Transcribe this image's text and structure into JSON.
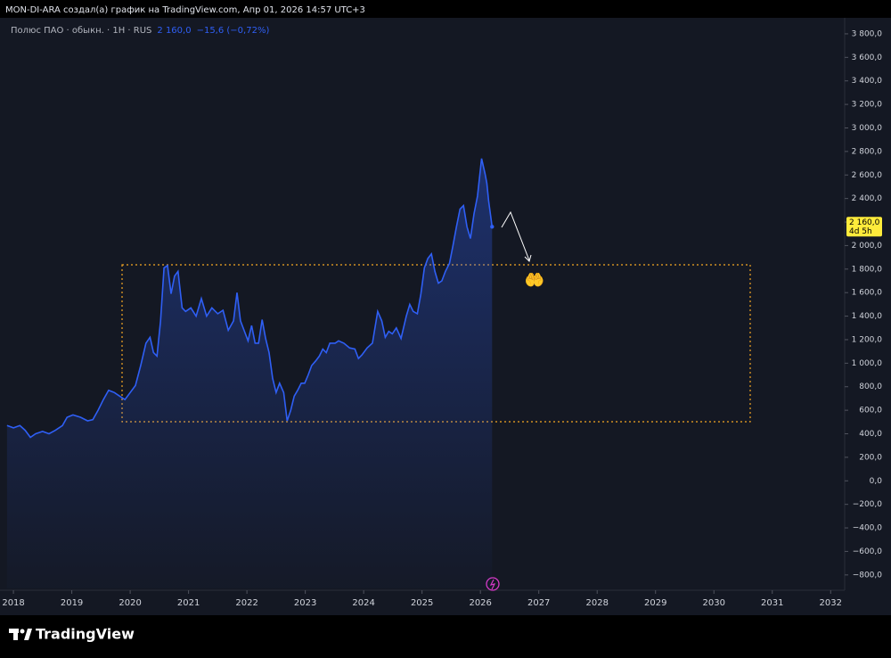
{
  "header": "MON-DI-ARA создал(а) график на TradingView.com, Апр 01, 2026 14:57 UTC+3",
  "footer_logo": "TradingView",
  "chart_data": {
    "type": "line",
    "legend": "top-left",
    "grid": false,
    "last_price_label": "2 160,0",
    "last_change_label": "−15,6 (−0,72%)",
    "countdown": "4d 5h",
    "badge_color": "#ffeb3b",
    "xlim": [
      2017.77,
      2032.24
    ],
    "xticks": [
      2018,
      2019,
      2020,
      2021,
      2022,
      2023,
      2024,
      2025,
      2026,
      2027,
      2028,
      2029,
      2030,
      2031,
      2032
    ],
    "ylim": [
      -915,
      3936
    ],
    "yticks": [
      {
        "value": -800,
        "label": "−800,0"
      },
      {
        "value": -600,
        "label": "−600,0"
      },
      {
        "value": -400,
        "label": "−400,0"
      },
      {
        "value": -200,
        "label": "−200,0"
      },
      {
        "value": 0,
        "label": "0,0"
      },
      {
        "value": 200,
        "label": "200,0"
      },
      {
        "value": 400,
        "label": "400,0"
      },
      {
        "value": 600,
        "label": "600,0"
      },
      {
        "value": 800,
        "label": "800,0"
      },
      {
        "value": 1000,
        "label": "1 000,0"
      },
      {
        "value": 1200,
        "label": "1 200,0"
      },
      {
        "value": 1400,
        "label": "1 400,0"
      },
      {
        "value": 1600,
        "label": "1 600,0"
      },
      {
        "value": 1800,
        "label": "1 800,0"
      },
      {
        "value": 2000,
        "label": "2 000,0"
      },
      {
        "value": 2200,
        "label": "2 200,0"
      },
      {
        "value": 2400,
        "label": "2 400,0"
      },
      {
        "value": 2600,
        "label": "2 600,0"
      },
      {
        "value": 2800,
        "label": "2 800,0"
      },
      {
        "value": 3000,
        "label": "3 000,0"
      },
      {
        "value": 3200,
        "label": "3 200,0"
      },
      {
        "value": 3400,
        "label": "3 400,0"
      },
      {
        "value": 3600,
        "label": "3 600,0"
      },
      {
        "value": 3800,
        "label": "3 800,0"
      }
    ],
    "x": [
      2017.89,
      2018.0,
      2018.11,
      2018.2,
      2018.29,
      2018.38,
      2018.5,
      2018.61,
      2018.72,
      2018.84,
      2018.92,
      2019.02,
      2019.15,
      2019.27,
      2019.36,
      2019.45,
      2019.54,
      2019.63,
      2019.73,
      2019.82,
      2019.91,
      2020.0,
      2020.09,
      2020.18,
      2020.27,
      2020.34,
      2020.4,
      2020.46,
      2020.52,
      2020.58,
      2020.64,
      2020.7,
      2020.76,
      2020.82,
      2020.89,
      2020.95,
      2021.04,
      2021.13,
      2021.22,
      2021.31,
      2021.4,
      2021.5,
      2021.59,
      2021.68,
      2021.77,
      2021.83,
      2021.89,
      2021.95,
      2022.02,
      2022.08,
      2022.14,
      2022.2,
      2022.26,
      2022.32,
      2022.38,
      2022.44,
      2022.5,
      2022.56,
      2022.63,
      2022.69,
      2022.75,
      2022.81,
      2022.87,
      2022.93,
      2022.99,
      2023.05,
      2023.11,
      2023.18,
      2023.24,
      2023.3,
      2023.36,
      2023.42,
      2023.51,
      2023.57,
      2023.66,
      2023.76,
      2023.85,
      2023.91,
      2023.97,
      2024.06,
      2024.15,
      2024.24,
      2024.31,
      2024.37,
      2024.43,
      2024.49,
      2024.56,
      2024.64,
      2024.73,
      2024.79,
      2024.85,
      2024.92,
      2024.98,
      2025.04,
      2025.1,
      2025.16,
      2025.22,
      2025.28,
      2025.34,
      2025.4,
      2025.47,
      2025.53,
      2025.59,
      2025.65,
      2025.71,
      2025.77,
      2025.83,
      2025.89,
      2025.95,
      2026.02,
      2026.08,
      2026.11,
      2026.14,
      2026.2
    ],
    "series": [
      {
        "name": "Полюс ПАО · обыкн. · 1H · RUS",
        "color": "#2f5ff5",
        "values": [
          470,
          450,
          470,
          430,
          370,
          400,
          420,
          400,
          430,
          470,
          540,
          560,
          540,
          510,
          520,
          600,
          690,
          770,
          750,
          720,
          690,
          750,
          810,
          980,
          1170,
          1220,
          1090,
          1060,
          1360,
          1810,
          1830,
          1590,
          1740,
          1780,
          1470,
          1440,
          1470,
          1400,
          1550,
          1400,
          1470,
          1420,
          1450,
          1280,
          1360,
          1600,
          1360,
          1280,
          1190,
          1320,
          1170,
          1170,
          1370,
          1210,
          1090,
          870,
          750,
          830,
          750,
          510,
          600,
          720,
          770,
          830,
          830,
          900,
          980,
          1020,
          1060,
          1120,
          1090,
          1170,
          1170,
          1190,
          1170,
          1130,
          1120,
          1040,
          1070,
          1130,
          1170,
          1440,
          1360,
          1220,
          1270,
          1250,
          1300,
          1210,
          1400,
          1500,
          1440,
          1420,
          1590,
          1810,
          1890,
          1930,
          1780,
          1680,
          1700,
          1780,
          1850,
          2000,
          2160,
          2310,
          2340,
          2160,
          2060,
          2270,
          2420,
          2740,
          2610,
          2530,
          2380,
          2160
        ]
      }
    ]
  }
}
